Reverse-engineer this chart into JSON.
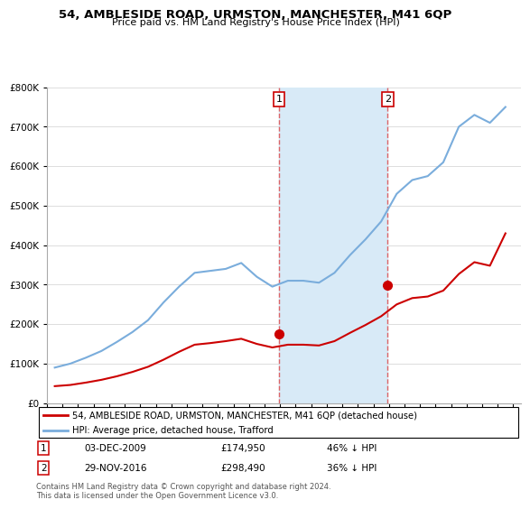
{
  "title": "54, AMBLESIDE ROAD, URMSTON, MANCHESTER, M41 6QP",
  "subtitle": "Price paid vs. HM Land Registry's House Price Index (HPI)",
  "legend_label_red": "54, AMBLESIDE ROAD, URMSTON, MANCHESTER, M41 6QP (detached house)",
  "legend_label_blue": "HPI: Average price, detached house, Trafford",
  "transaction1_date": "03-DEC-2009",
  "transaction1_price": 174950,
  "transaction1_label": "46% ↓ HPI",
  "transaction2_date": "29-NOV-2016",
  "transaction2_price": 298490,
  "transaction2_label": "36% ↓ HPI",
  "footer": "Contains HM Land Registry data © Crown copyright and database right 2024.\nThis data is licensed under the Open Government Licence v3.0.",
  "color_red": "#cc0000",
  "color_blue": "#7aaddc",
  "color_shade": "#d8eaf7",
  "ylim": [
    0,
    800000
  ],
  "xlim_start": 1995.0,
  "xlim_end": 2025.5,
  "transaction1_x": 2009.92,
  "transaction2_x": 2016.92,
  "hpi_years": [
    1995.5,
    1996.5,
    1997.5,
    1998.5,
    1999.5,
    2000.5,
    2001.5,
    2002.5,
    2003.5,
    2004.5,
    2005.5,
    2006.5,
    2007.5,
    2008.5,
    2009.5,
    2010.5,
    2011.5,
    2012.5,
    2013.5,
    2014.5,
    2015.5,
    2016.5,
    2017.5,
    2018.5,
    2019.5,
    2020.5,
    2021.5,
    2022.5,
    2023.5,
    2024.5
  ],
  "hpi_values": [
    90000,
    100000,
    115000,
    132000,
    155000,
    180000,
    210000,
    255000,
    295000,
    330000,
    335000,
    340000,
    355000,
    320000,
    295000,
    310000,
    310000,
    305000,
    330000,
    375000,
    415000,
    460000,
    530000,
    565000,
    575000,
    610000,
    700000,
    730000,
    710000,
    750000
  ],
  "price_years": [
    1995.5,
    1996.5,
    1997.5,
    1998.5,
    1999.5,
    2000.5,
    2001.5,
    2002.5,
    2003.5,
    2004.5,
    2005.5,
    2006.5,
    2007.5,
    2008.5,
    2009.5,
    2010.5,
    2011.5,
    2012.5,
    2013.5,
    2014.5,
    2015.5,
    2016.5,
    2017.5,
    2018.5,
    2019.5,
    2020.5,
    2021.5,
    2022.5,
    2023.5,
    2024.5
  ],
  "price_values": [
    43000,
    46000,
    52000,
    59000,
    68000,
    79000,
    92000,
    110000,
    130000,
    148000,
    152000,
    157000,
    163000,
    150000,
    141000,
    148000,
    148000,
    146000,
    157000,
    178000,
    198000,
    220000,
    250000,
    266000,
    270000,
    285000,
    327000,
    357000,
    348000,
    430000
  ]
}
